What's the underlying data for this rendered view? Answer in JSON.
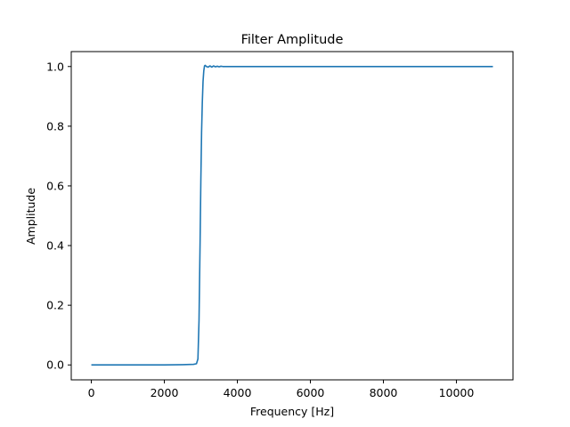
{
  "chart_data": {
    "type": "line",
    "title": "Filter Amplitude",
    "xlabel": "Frequency [Hz]",
    "ylabel": "Amplitude",
    "xlim": [
      -550,
      11550
    ],
    "ylim": [
      -0.05,
      1.05
    ],
    "x_ticks": [
      {
        "value": 0,
        "label": "0"
      },
      {
        "value": 2000,
        "label": "2000"
      },
      {
        "value": 4000,
        "label": "4000"
      },
      {
        "value": 6000,
        "label": "6000"
      },
      {
        "value": 8000,
        "label": "8000"
      },
      {
        "value": 10000,
        "label": "10000"
      }
    ],
    "y_ticks": [
      {
        "value": 0.0,
        "label": "0.0"
      },
      {
        "value": 0.2,
        "label": "0.2"
      },
      {
        "value": 0.4,
        "label": "0.4"
      },
      {
        "value": 0.6,
        "label": "0.6"
      },
      {
        "value": 0.8,
        "label": "0.8"
      },
      {
        "value": 1.0,
        "label": "1.0"
      }
    ],
    "grid": false,
    "series": [
      {
        "color": "#1f77b4",
        "x": [
          0,
          500,
          1000,
          1500,
          2000,
          2500,
          2800,
          2880,
          2920,
          2950,
          2980,
          3000,
          3020,
          3040,
          3060,
          3080,
          3100,
          3120,
          3150,
          3200,
          3250,
          3300,
          3350,
          3400,
          3450,
          3500,
          3550,
          3600,
          3700,
          3800,
          4000,
          4500,
          5000,
          6000,
          7000,
          8000,
          9000,
          10000,
          11000
        ],
        "y": [
          0,
          0,
          0,
          0,
          0,
          0.001,
          0.002,
          0.004,
          0.02,
          0.15,
          0.42,
          0.62,
          0.78,
          0.88,
          0.95,
          0.985,
          1.002,
          1.004,
          1.0,
          0.998,
          1.002,
          0.998,
          1.002,
          0.999,
          1.001,
          0.999,
          1.001,
          1.0,
          1.0,
          1.0,
          1.0,
          1.0,
          1.0,
          1.0,
          1.0,
          1.0,
          1.0,
          1.0,
          1.0
        ]
      }
    ]
  }
}
